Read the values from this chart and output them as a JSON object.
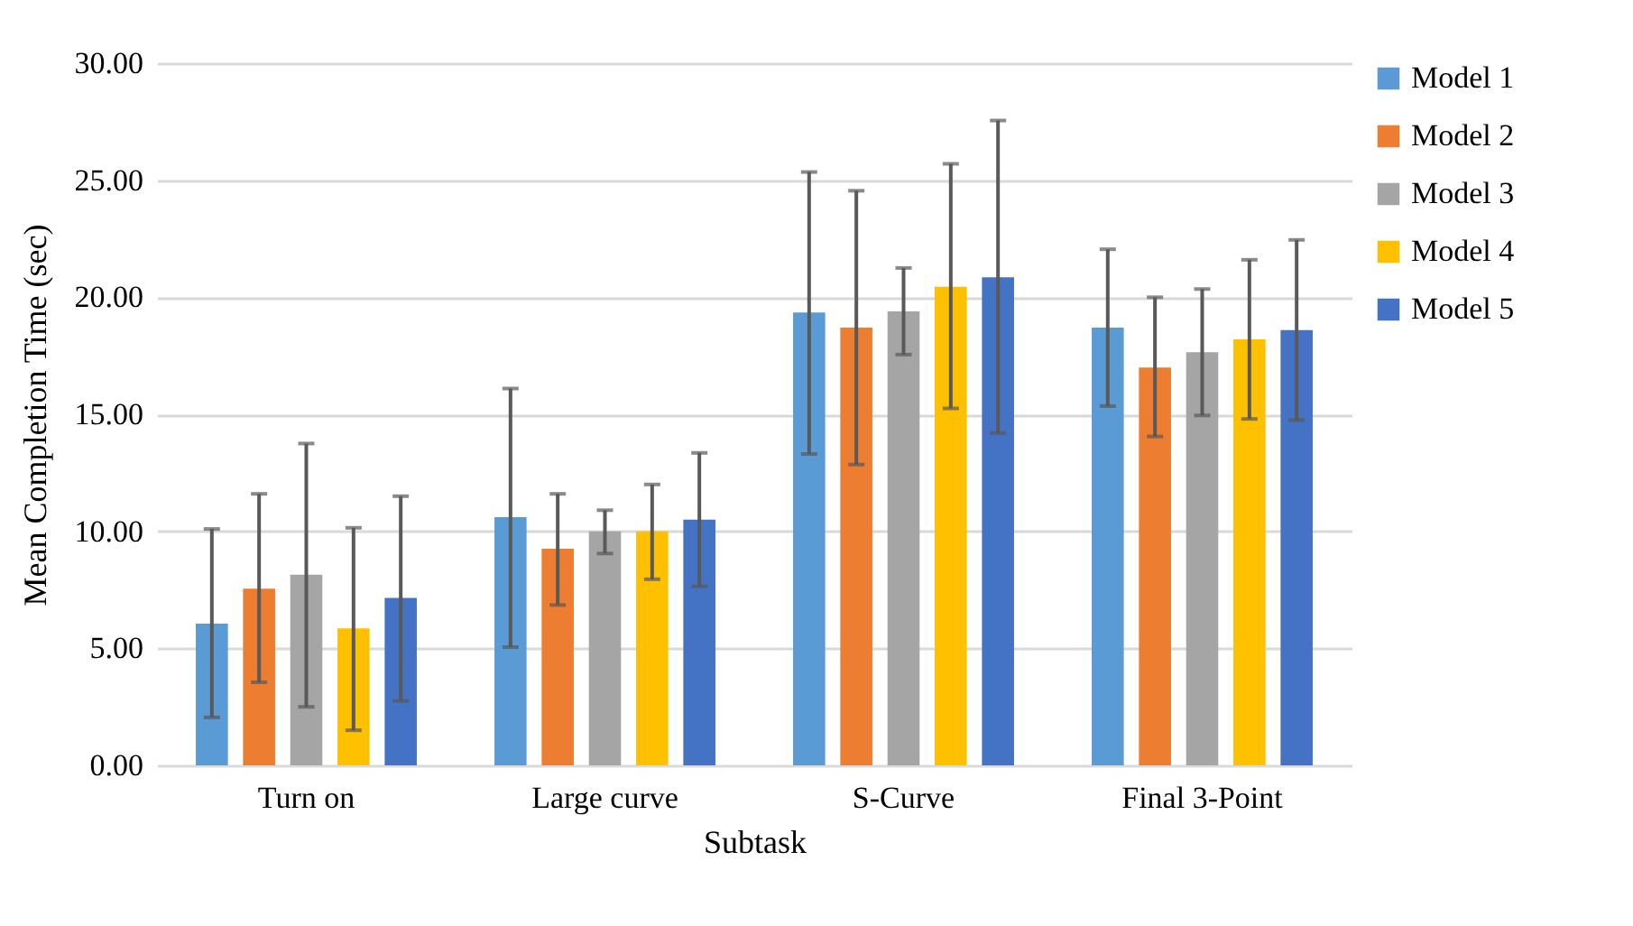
{
  "chart_data": {
    "type": "bar",
    "xlabel": "Subtask",
    "ylabel": "Mean Completion Time (sec)",
    "categories": [
      "Turn on",
      "Large curve",
      "S-Curve",
      "Final 3-Point"
    ],
    "series": [
      {
        "name": "Model 1",
        "color": "#5b9bd5",
        "values": [
          6.05,
          10.6,
          19.35,
          18.7
        ],
        "errors": [
          [
            2.05,
            10.1
          ],
          [
            5.05,
            16.1
          ],
          [
            13.3,
            25.35
          ],
          [
            15.35,
            22.05
          ]
        ]
      },
      {
        "name": "Model 2",
        "color": "#ed7d31",
        "values": [
          7.55,
          9.25,
          18.7,
          17.0
        ],
        "errors": [
          [
            3.55,
            11.6
          ],
          [
            6.85,
            11.6
          ],
          [
            12.85,
            24.55
          ],
          [
            14.05,
            20.0
          ]
        ]
      },
      {
        "name": "Model 3",
        "color": "#a5a5a5",
        "values": [
          8.15,
          10.0,
          19.4,
          17.65
        ],
        "errors": [
          [
            2.5,
            13.75
          ],
          [
            9.05,
            10.9
          ],
          [
            17.55,
            21.25
          ],
          [
            14.95,
            20.35
          ]
        ]
      },
      {
        "name": "Model 4",
        "color": "#ffc000",
        "values": [
          5.85,
          10.0,
          20.45,
          18.2
        ],
        "errors": [
          [
            1.5,
            10.15
          ],
          [
            7.95,
            12.0
          ],
          [
            15.25,
            25.7
          ],
          [
            14.8,
            21.6
          ]
        ]
      },
      {
        "name": "Model 5",
        "color": "#4472c4",
        "values": [
          7.15,
          10.5,
          20.85,
          18.6
        ],
        "errors": [
          [
            2.75,
            11.5
          ],
          [
            7.65,
            13.35
          ],
          [
            14.2,
            27.55
          ],
          [
            14.75,
            22.45
          ]
        ]
      }
    ],
    "ylim": [
      0,
      30
    ],
    "yticks": [
      {
        "value": 0,
        "label": "0.00"
      },
      {
        "value": 5,
        "label": "5.00"
      },
      {
        "value": 10,
        "label": "10.00"
      },
      {
        "value": 15,
        "label": "15.00"
      },
      {
        "value": 20,
        "label": "20.00"
      },
      {
        "value": 25,
        "label": "25.00"
      },
      {
        "value": 30,
        "label": "30.00"
      }
    ],
    "grid": "y",
    "legend": "right"
  }
}
